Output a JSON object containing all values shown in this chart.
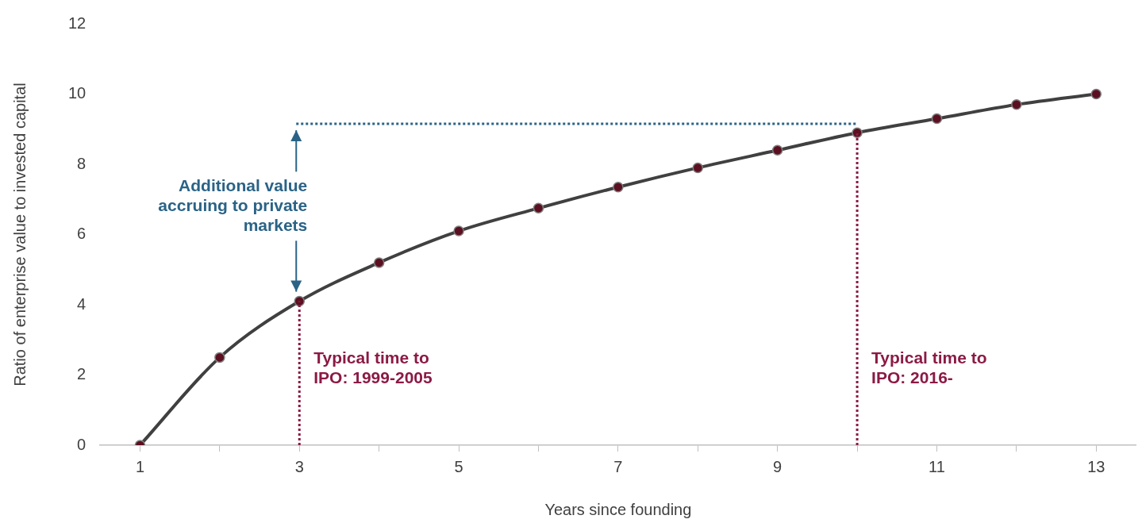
{
  "chart_data": {
    "type": "line",
    "xlabel": "Years since founding",
    "ylabel": "Ratio of enterprise value to invested capital",
    "x": [
      1,
      2,
      3,
      4,
      5,
      6,
      7,
      8,
      9,
      10,
      11,
      12,
      13
    ],
    "series": [
      {
        "color": "#404040",
        "values": [
          0,
          2.5,
          4.1,
          5.2,
          6.1,
          6.75,
          7.35,
          7.9,
          8.4,
          8.9,
          9.3,
          9.7,
          10
        ]
      }
    ],
    "xlim": [
      0.5,
      13.5
    ],
    "xticks": [
      1,
      {
        "value": 2,
        "label": null
      },
      3,
      {
        "value": 4,
        "label": null
      },
      5,
      {
        "value": 6,
        "label": null
      },
      7,
      {
        "value": 8,
        "label": null
      },
      9,
      {
        "value": 10,
        "label": null
      },
      11,
      {
        "value": 12,
        "label": null
      },
      13
    ],
    "ylim": [
      0,
      12
    ],
    "yticks": [
      0,
      2,
      4,
      6,
      8,
      10,
      12
    ],
    "marker": "circle",
    "line_style": "solid",
    "grid": false,
    "legend": false,
    "annotations": [
      {
        "text": "Typical time to IPO: 1999-2005",
        "x": 3,
        "y": 2.7
      },
      {
        "text": "Typical time to IPO: 2016-",
        "x": 10,
        "y": 2.7
      }
    ],
    "ref_lines": [
      {
        "axis": "x",
        "value": 3,
        "color": "#8b1a45",
        "line_style": "dotted"
      },
      {
        "axis": "x",
        "value": 10,
        "color": "#8b1a45",
        "line_style": "dotted"
      },
      {
        "axis": "y",
        "value": 9.15,
        "label": "Additional value accruing to private markets",
        "color": "#2a6386",
        "line_style": "dotted"
      }
    ]
  }
}
